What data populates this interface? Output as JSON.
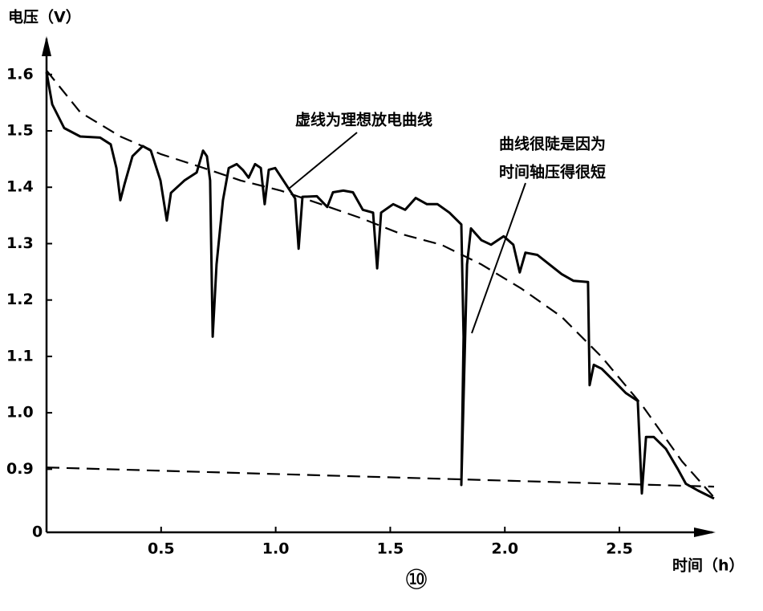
{
  "chart_data": {
    "type": "line",
    "ylabel": "电压（V）",
    "xlabel": "时间（h）",
    "origin_label": "0",
    "figure_label": "⑩",
    "annotations": [
      "虚线为理想放电曲线",
      "曲线很陡是因为",
      "时间轴压得很短"
    ],
    "xlim": [
      0,
      2.92
    ],
    "ylim": [
      0.788,
      1.668
    ],
    "xticks": [
      0.5,
      {
        "value": 1,
        "label": "1.0"
      },
      1.5,
      {
        "value": 2,
        "label": "2.0"
      },
      2.5
    ],
    "yticks": [
      0.9,
      {
        "value": 1,
        "label": "1.0"
      },
      1.1,
      1.2,
      1.3,
      1.4,
      1.5,
      1.6
    ],
    "series": [
      {
        "color": "#000000",
        "dashed": false,
        "x": [
          0,
          0.025,
          0.077,
          0.147,
          0.234,
          0.28,
          0.305,
          0.322,
          0.34,
          0.375,
          0.42,
          0.455,
          0.497,
          0.525,
          0.543,
          0.602,
          0.655,
          0.683,
          0.7,
          0.714,
          0.725,
          0.742,
          0.77,
          0.795,
          0.83,
          0.858,
          0.882,
          0.91,
          0.935,
          0.952,
          0.97,
          0.998,
          1.04,
          1.085,
          1.1,
          1.117,
          1.18,
          1.225,
          1.25,
          1.295,
          1.337,
          1.38,
          1.425,
          1.443,
          1.46,
          1.513,
          1.565,
          1.611,
          1.66,
          1.706,
          1.758,
          1.81,
          1.82,
          1.81,
          1.835,
          1.852,
          1.898,
          1.94,
          1.995,
          2.037,
          2.065,
          2.09,
          2.142,
          2.195,
          2.248,
          2.3,
          2.363,
          2.37,
          2.388,
          2.423,
          2.475,
          2.528,
          2.58,
          2.598,
          2.616,
          2.65,
          2.703,
          2.755,
          2.79,
          2.843,
          2.913
        ],
        "values": [
          1.604,
          1.547,
          1.505,
          1.49,
          1.488,
          1.476,
          1.434,
          1.377,
          1.405,
          1.455,
          1.473,
          1.465,
          1.412,
          1.341,
          1.39,
          1.412,
          1.426,
          1.465,
          1.455,
          1.412,
          1.135,
          1.263,
          1.377,
          1.434,
          1.441,
          1.43,
          1.417,
          1.441,
          1.434,
          1.37,
          1.431,
          1.434,
          1.408,
          1.38,
          1.291,
          1.383,
          1.384,
          1.365,
          1.391,
          1.394,
          1.391,
          1.36,
          1.355,
          1.256,
          1.355,
          1.37,
          1.36,
          1.381,
          1.37,
          1.37,
          1.355,
          1.334,
          1.135,
          0.872,
          1.263,
          1.327,
          1.306,
          1.298,
          1.313,
          1.298,
          1.249,
          1.284,
          1.28,
          1.263,
          1.246,
          1.234,
          1.232,
          1.049,
          1.085,
          1.078,
          1.057,
          1.035,
          1.021,
          0.857,
          0.957,
          0.957,
          0.936,
          0.9,
          0.874,
          0.862,
          0.848
        ]
      },
      {
        "color": "#000000",
        "dashed": true,
        "x": [
          0,
          0.147,
          0.322,
          0.497,
          0.672,
          0.847,
          1.022,
          1.197,
          1.373,
          1.548,
          1.723,
          1.898,
          2.073,
          2.248,
          2.423,
          2.598,
          2.773,
          2.913
        ],
        "values": [
          1.607,
          1.533,
          1.49,
          1.459,
          1.436,
          1.412,
          1.394,
          1.37,
          1.345,
          1.317,
          1.298,
          1.263,
          1.22,
          1.17,
          1.099,
          1.014,
          0.914,
          0.85
        ]
      },
      {
        "color": "#000000",
        "dashed": true,
        "x": [
          0,
          2.913
        ],
        "values": [
          0.903,
          0.869
        ]
      }
    ]
  }
}
